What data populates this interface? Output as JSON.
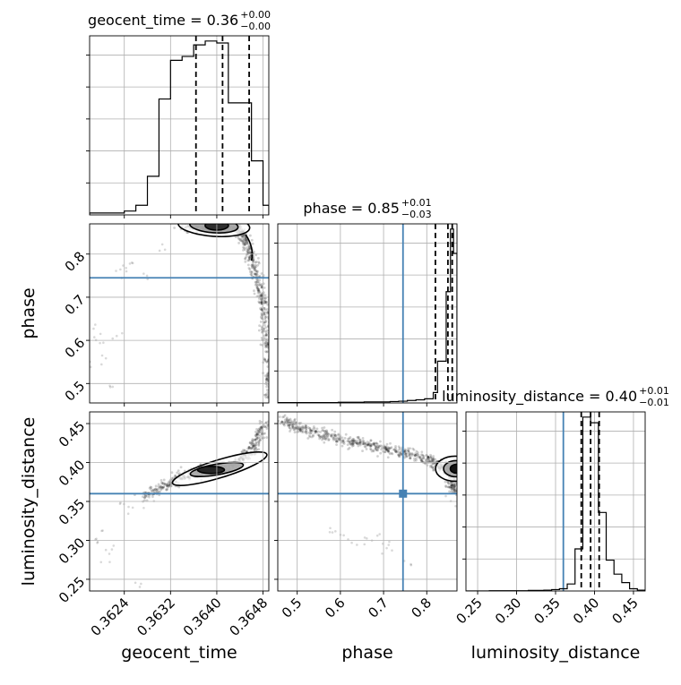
{
  "chart_data": {
    "type": "corner",
    "parameters": [
      "geocent_time",
      "phase",
      "luminosity_distance"
    ],
    "colors": {
      "truth": "#4682b4",
      "hist": "#000000",
      "quantile": "#000000",
      "points": "#555555",
      "grid": "#b0b0b0"
    },
    "truths": {
      "geocent_time": null,
      "phase": 0.745,
      "luminosity_distance": 0.36
    },
    "diagonal": [
      {
        "param": "geocent_time",
        "title": "geocent_time = 0.36",
        "title_sup": "+0.00",
        "title_sub": "−0.00",
        "xlim": [
          0.3618,
          0.3649
        ],
        "quantiles": [
          0.36364,
          0.3641,
          0.36456
        ],
        "bin_edges": [
          0.3618,
          0.362,
          0.3622,
          0.3624,
          0.3626,
          0.3628,
          0.363,
          0.3632,
          0.3634,
          0.3636,
          0.3638,
          0.364,
          0.3642,
          0.3644,
          0.3646,
          0.3648,
          0.3649
        ],
        "counts": [
          1,
          1,
          1,
          2,
          5,
          20,
          60,
          80,
          82,
          88,
          90,
          89,
          58,
          58,
          28,
          5
        ]
      },
      {
        "param": "phase",
        "title": "phase = 0.85",
        "title_sup": "+0.01",
        "title_sub": "−0.03",
        "xlim": [
          0.455,
          0.87
        ],
        "quantiles": [
          0.82,
          0.849,
          0.859
        ],
        "bin_edges": [
          0.455,
          0.475,
          0.495,
          0.515,
          0.535,
          0.555,
          0.575,
          0.595,
          0.615,
          0.635,
          0.655,
          0.675,
          0.695,
          0.715,
          0.735,
          0.755,
          0.775,
          0.795,
          0.815,
          0.825,
          0.835,
          0.845,
          0.855,
          0.862,
          0.87
        ],
        "counts": [
          1,
          1,
          1,
          1,
          1,
          1,
          1,
          2,
          2,
          2,
          3,
          3,
          3,
          4,
          5,
          7,
          9,
          12,
          30,
          120,
          120,
          320,
          500,
          430
        ]
      },
      {
        "param": "luminosity_distance",
        "title": "luminosity_distance = 0.40",
        "title_sup": "+0.01",
        "title_sub": "−0.01",
        "xlim": [
          0.235,
          0.465
        ],
        "quantiles": [
          0.383,
          0.395,
          0.406
        ],
        "bin_edges": [
          0.235,
          0.245,
          0.255,
          0.265,
          0.275,
          0.285,
          0.295,
          0.305,
          0.315,
          0.325,
          0.335,
          0.345,
          0.355,
          0.365,
          0.375,
          0.385,
          0.395,
          0.405,
          0.415,
          0.425,
          0.435,
          0.445,
          0.455,
          0.465
        ],
        "counts": [
          0,
          0,
          0,
          1,
          1,
          1,
          1,
          1,
          2,
          2,
          3,
          5,
          8,
          25,
          150,
          620,
          600,
          280,
          110,
          60,
          30,
          8,
          3
        ]
      }
    ],
    "pairs": [
      {
        "x": "geocent_time",
        "y": "phase",
        "xlim": [
          0.3618,
          0.3649
        ],
        "ylim": [
          0.455,
          0.87
        ],
        "ridge": [
          [
            0.3634,
            0.862
          ],
          [
            0.3638,
            0.866
          ],
          [
            0.3641,
            0.866
          ],
          [
            0.3644,
            0.858
          ],
          [
            0.3645,
            0.83
          ],
          [
            0.3646,
            0.79
          ],
          [
            0.3647,
            0.74
          ],
          [
            0.3648,
            0.69
          ],
          [
            0.36485,
            0.62
          ],
          [
            0.3649,
            0.55
          ],
          [
            0.3649,
            0.47
          ]
        ],
        "scatter": [
          [
            0.3619,
            0.63
          ],
          [
            0.36195,
            0.6
          ],
          [
            0.362,
            0.58
          ],
          [
            0.3622,
            0.61
          ],
          [
            0.3624,
            0.77
          ],
          [
            0.3623,
            0.76
          ],
          [
            0.3625,
            0.765
          ],
          [
            0.3628,
            0.755
          ],
          [
            0.3619,
            0.55
          ],
          [
            0.3621,
            0.5
          ],
          [
            0.363,
            0.8
          ]
        ]
      },
      {
        "x": "geocent_time",
        "y": "luminosity_distance",
        "xlim": [
          0.3618,
          0.3649
        ],
        "ylim": [
          0.235,
          0.465
        ],
        "ridge": [
          [
            0.3627,
            0.355
          ],
          [
            0.3631,
            0.37
          ],
          [
            0.3634,
            0.383
          ],
          [
            0.3638,
            0.39
          ],
          [
            0.3642,
            0.393
          ],
          [
            0.3645,
            0.408
          ],
          [
            0.3647,
            0.428
          ],
          [
            0.36485,
            0.45
          ]
        ],
        "scatter": [
          [
            0.3619,
            0.3
          ],
          [
            0.362,
            0.305
          ],
          [
            0.3622,
            0.29
          ],
          [
            0.3624,
            0.34
          ],
          [
            0.3625,
            0.345
          ],
          [
            0.3626,
            0.25
          ],
          [
            0.3621,
            0.275
          ],
          [
            0.3628,
            0.352
          ]
        ]
      },
      {
        "x": "phase",
        "y": "luminosity_distance",
        "xlim": [
          0.455,
          0.87
        ],
        "ylim": [
          0.235,
          0.465
        ],
        "ridge": [
          [
            0.465,
            0.455
          ],
          [
            0.5,
            0.445
          ],
          [
            0.55,
            0.437
          ],
          [
            0.6,
            0.43
          ],
          [
            0.65,
            0.424
          ],
          [
            0.7,
            0.418
          ],
          [
            0.75,
            0.412
          ],
          [
            0.8,
            0.404
          ],
          [
            0.83,
            0.397
          ],
          [
            0.85,
            0.393
          ],
          [
            0.86,
            0.375
          ],
          [
            0.865,
            0.365
          ]
        ],
        "scatter": [
          [
            0.58,
            0.31
          ],
          [
            0.6,
            0.305
          ],
          [
            0.62,
            0.3
          ],
          [
            0.65,
            0.3
          ],
          [
            0.68,
            0.31
          ],
          [
            0.72,
            0.29
          ],
          [
            0.75,
            0.27
          ],
          [
            0.7,
            0.28
          ],
          [
            0.85,
            0.353
          ],
          [
            0.86,
            0.355
          ]
        ]
      }
    ],
    "tick_labels": {
      "geocent_time": [
        "0.3624",
        "0.3632",
        "0.3640",
        "0.3648"
      ],
      "phase_x": [
        "0.5",
        "0.6",
        "0.7",
        "0.8"
      ],
      "phase_y": [
        "0.5",
        "0.6",
        "0.7",
        "0.8"
      ],
      "luminosity_distance_x": [
        "0.25",
        "0.30",
        "0.35",
        "0.40",
        "0.45"
      ],
      "luminosity_distance_y": [
        "0.25",
        "0.30",
        "0.35",
        "0.40",
        "0.45"
      ]
    },
    "tick_values": {
      "geocent_time": [
        0.3624,
        0.3632,
        0.364,
        0.3648
      ],
      "phase": [
        0.5,
        0.6,
        0.7,
        0.8
      ],
      "luminosity_distance": [
        0.25,
        0.3,
        0.35,
        0.4,
        0.45
      ]
    },
    "axis_labels": {
      "x": [
        "geocent_time",
        "phase",
        "luminosity_distance"
      ],
      "y": [
        "phase",
        "luminosity_distance"
      ]
    }
  }
}
